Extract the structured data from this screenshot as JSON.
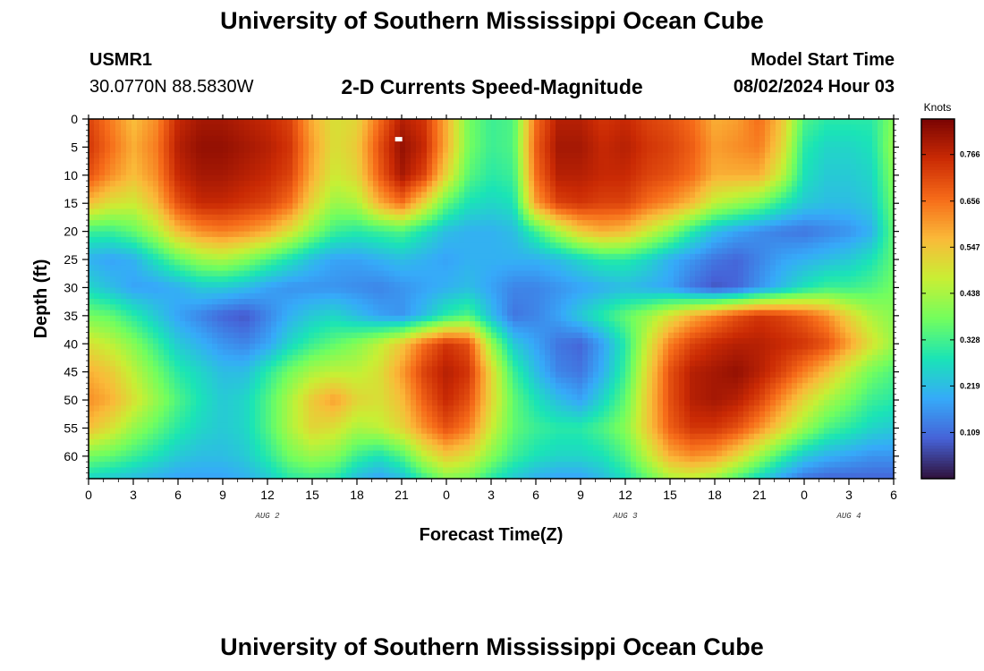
{
  "header": {
    "title": "University of Southern Mississippi Ocean Cube",
    "station": "USMR1",
    "coordinates": "30.0770N  88.5830W",
    "subtitle": "2-D Currents Speed-Magnitude",
    "model_start_label": "Model Start Time",
    "model_start_value": "08/02/2024 Hour 03"
  },
  "footer": {
    "title": "University of Southern Mississippi Ocean Cube"
  },
  "chart_data": {
    "type": "heatmap",
    "title": "2-D Currents Speed-Magnitude",
    "xlabel": "Forecast Time(Z)",
    "ylabel": "Depth (ft)",
    "x_tick_labels": [
      "0",
      "3",
      "6",
      "9",
      "12",
      "15",
      "18",
      "21",
      "0",
      "3",
      "6",
      "9",
      "12",
      "15",
      "18",
      "21",
      "0",
      "3",
      "6"
    ],
    "x_range_hours": [
      0,
      54
    ],
    "day_labels": [
      {
        "label": "AUG 2",
        "hour": 12
      },
      {
        "label": "AUG 3",
        "hour": 36
      },
      {
        "label": "AUG 4",
        "hour": 51
      }
    ],
    "y_tick_labels": [
      "0",
      "5",
      "10",
      "15",
      "20",
      "25",
      "30",
      "35",
      "40",
      "45",
      "50",
      "55",
      "60"
    ],
    "y_range_ft": [
      0,
      64
    ],
    "y_inverted": true,
    "colorbar": {
      "unit": "Knots",
      "tick_labels": [
        "0.766",
        "0.656",
        "0.547",
        "0.438",
        "0.328",
        "0.219",
        "0.109"
      ],
      "range": [
        0.0,
        0.85
      ],
      "colors": [
        "#30123b",
        "#4662d7",
        "#36aaf9",
        "#1ae4b6",
        "#72fe5e",
        "#c8ef34",
        "#faba39",
        "#f66b19",
        "#ca2a04",
        "#7a0403"
      ]
    },
    "field": {
      "hours": [
        0,
        1.5,
        3,
        4.5,
        6,
        7.5,
        9,
        10.5,
        12,
        13.5,
        15,
        16.5,
        18,
        19.5,
        21,
        22.5,
        24,
        25.5,
        27,
        28.5,
        30,
        31.5,
        33,
        34.5,
        36,
        37.5,
        39,
        40.5,
        42,
        43.5,
        45,
        46.5,
        48,
        49.5,
        51,
        52.5,
        54
      ],
      "depths": [
        0,
        5,
        10,
        15,
        20,
        25,
        30,
        35,
        40,
        45,
        50,
        55,
        60,
        64
      ],
      "speed": [
        [
          0.72,
          0.64,
          0.56,
          0.62,
          0.76,
          0.8,
          0.8,
          0.78,
          0.76,
          0.72,
          0.58,
          0.5,
          0.52,
          0.66,
          0.78,
          0.74,
          0.58,
          0.38,
          0.32,
          0.34,
          0.66,
          0.78,
          0.78,
          0.74,
          0.76,
          0.72,
          0.7,
          0.66,
          0.58,
          0.6,
          0.66,
          0.55,
          0.34,
          0.3,
          0.3,
          0.3,
          0.4
        ],
        [
          0.74,
          0.66,
          0.58,
          0.64,
          0.78,
          0.82,
          0.82,
          0.8,
          0.78,
          0.74,
          0.6,
          0.5,
          0.54,
          0.7,
          0.82,
          0.76,
          0.58,
          0.38,
          0.32,
          0.34,
          0.68,
          0.8,
          0.8,
          0.76,
          0.78,
          0.74,
          0.72,
          0.68,
          0.6,
          0.62,
          0.64,
          0.52,
          0.3,
          0.26,
          0.26,
          0.28,
          0.42
        ],
        [
          0.7,
          0.62,
          0.56,
          0.62,
          0.76,
          0.8,
          0.8,
          0.78,
          0.76,
          0.72,
          0.58,
          0.48,
          0.52,
          0.68,
          0.8,
          0.72,
          0.52,
          0.35,
          0.3,
          0.32,
          0.66,
          0.78,
          0.78,
          0.76,
          0.76,
          0.72,
          0.7,
          0.66,
          0.58,
          0.58,
          0.58,
          0.46,
          0.28,
          0.24,
          0.24,
          0.26,
          0.4
        ],
        [
          0.56,
          0.5,
          0.48,
          0.56,
          0.7,
          0.76,
          0.76,
          0.74,
          0.72,
          0.66,
          0.52,
          0.42,
          0.44,
          0.58,
          0.66,
          0.52,
          0.36,
          0.28,
          0.26,
          0.28,
          0.6,
          0.72,
          0.74,
          0.72,
          0.72,
          0.66,
          0.62,
          0.56,
          0.46,
          0.42,
          0.38,
          0.3,
          0.24,
          0.22,
          0.22,
          0.24,
          0.38
        ],
        [
          0.32,
          0.32,
          0.36,
          0.44,
          0.56,
          0.62,
          0.64,
          0.62,
          0.58,
          0.5,
          0.4,
          0.32,
          0.3,
          0.32,
          0.34,
          0.28,
          0.22,
          0.2,
          0.2,
          0.22,
          0.32,
          0.44,
          0.54,
          0.58,
          0.56,
          0.48,
          0.4,
          0.3,
          0.22,
          0.18,
          0.15,
          0.13,
          0.12,
          0.14,
          0.16,
          0.2,
          0.36
        ],
        [
          0.2,
          0.18,
          0.2,
          0.28,
          0.36,
          0.42,
          0.44,
          0.4,
          0.34,
          0.28,
          0.22,
          0.18,
          0.18,
          0.2,
          0.22,
          0.2,
          0.18,
          0.2,
          0.2,
          0.2,
          0.2,
          0.22,
          0.26,
          0.3,
          0.3,
          0.26,
          0.2,
          0.16,
          0.12,
          0.1,
          0.14,
          0.18,
          0.2,
          0.22,
          0.24,
          0.28,
          0.36
        ],
        [
          0.26,
          0.22,
          0.18,
          0.18,
          0.2,
          0.24,
          0.24,
          0.22,
          0.18,
          0.16,
          0.16,
          0.16,
          0.15,
          0.14,
          0.16,
          0.18,
          0.2,
          0.22,
          0.18,
          0.14,
          0.14,
          0.16,
          0.18,
          0.2,
          0.22,
          0.2,
          0.18,
          0.12,
          0.08,
          0.1,
          0.16,
          0.22,
          0.28,
          0.32,
          0.32,
          0.34,
          0.38
        ],
        [
          0.38,
          0.36,
          0.3,
          0.24,
          0.18,
          0.14,
          0.1,
          0.08,
          0.14,
          0.2,
          0.24,
          0.26,
          0.22,
          0.18,
          0.16,
          0.22,
          0.3,
          0.34,
          0.22,
          0.12,
          0.14,
          0.18,
          0.24,
          0.3,
          0.36,
          0.42,
          0.5,
          0.58,
          0.64,
          0.7,
          0.74,
          0.72,
          0.68,
          0.62,
          0.52,
          0.44,
          0.4
        ],
        [
          0.5,
          0.46,
          0.4,
          0.32,
          0.24,
          0.2,
          0.16,
          0.14,
          0.18,
          0.26,
          0.32,
          0.36,
          0.4,
          0.46,
          0.54,
          0.66,
          0.74,
          0.7,
          0.42,
          0.24,
          0.18,
          0.12,
          0.1,
          0.18,
          0.3,
          0.48,
          0.64,
          0.72,
          0.76,
          0.78,
          0.78,
          0.76,
          0.74,
          0.7,
          0.6,
          0.5,
          0.42
        ],
        [
          0.58,
          0.54,
          0.46,
          0.38,
          0.3,
          0.26,
          0.22,
          0.22,
          0.3,
          0.38,
          0.44,
          0.46,
          0.46,
          0.5,
          0.6,
          0.72,
          0.78,
          0.74,
          0.52,
          0.32,
          0.22,
          0.14,
          0.12,
          0.2,
          0.32,
          0.52,
          0.7,
          0.78,
          0.8,
          0.82,
          0.78,
          0.72,
          0.64,
          0.56,
          0.46,
          0.38,
          0.34
        ],
        [
          0.62,
          0.58,
          0.5,
          0.42,
          0.34,
          0.28,
          0.24,
          0.26,
          0.34,
          0.44,
          0.54,
          0.6,
          0.52,
          0.5,
          0.56,
          0.68,
          0.76,
          0.7,
          0.52,
          0.36,
          0.28,
          0.22,
          0.18,
          0.26,
          0.36,
          0.54,
          0.7,
          0.78,
          0.8,
          0.78,
          0.72,
          0.62,
          0.52,
          0.44,
          0.38,
          0.32,
          0.3
        ],
        [
          0.56,
          0.5,
          0.42,
          0.36,
          0.3,
          0.26,
          0.24,
          0.26,
          0.34,
          0.44,
          0.52,
          0.5,
          0.44,
          0.46,
          0.52,
          0.62,
          0.7,
          0.64,
          0.48,
          0.36,
          0.32,
          0.3,
          0.3,
          0.34,
          0.4,
          0.54,
          0.68,
          0.74,
          0.74,
          0.7,
          0.62,
          0.52,
          0.42,
          0.34,
          0.3,
          0.26,
          0.24
        ],
        [
          0.38,
          0.36,
          0.32,
          0.28,
          0.24,
          0.22,
          0.22,
          0.24,
          0.3,
          0.38,
          0.42,
          0.4,
          0.32,
          0.28,
          0.34,
          0.46,
          0.54,
          0.5,
          0.4,
          0.32,
          0.28,
          0.26,
          0.26,
          0.28,
          0.34,
          0.46,
          0.58,
          0.62,
          0.6,
          0.52,
          0.42,
          0.32,
          0.24,
          0.2,
          0.18,
          0.16,
          0.16
        ],
        [
          0.26,
          0.24,
          0.22,
          0.2,
          0.18,
          0.18,
          0.18,
          0.2,
          0.24,
          0.3,
          0.32,
          0.3,
          0.22,
          0.18,
          0.22,
          0.32,
          0.4,
          0.38,
          0.3,
          0.24,
          0.2,
          0.18,
          0.18,
          0.22,
          0.28,
          0.36,
          0.44,
          0.46,
          0.42,
          0.34,
          0.26,
          0.18,
          0.12,
          0.1,
          0.1,
          0.1,
          0.1
        ]
      ]
    }
  }
}
